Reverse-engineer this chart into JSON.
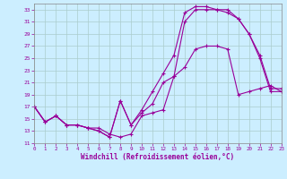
{
  "xlabel": "Windchill (Refroidissement éolien,°C)",
  "bg_color": "#cceeff",
  "line_color": "#990099",
  "xlim": [
    0,
    23
  ],
  "ylim": [
    11,
    34
  ],
  "xticks": [
    0,
    1,
    2,
    3,
    4,
    5,
    6,
    7,
    8,
    9,
    10,
    11,
    12,
    13,
    14,
    15,
    16,
    17,
    18,
    19,
    20,
    21,
    22,
    23
  ],
  "yticks": [
    11,
    13,
    15,
    17,
    19,
    21,
    23,
    25,
    27,
    29,
    31,
    33
  ],
  "line1_x": [
    0,
    1,
    2,
    3,
    4,
    5,
    6,
    7,
    8,
    9,
    10,
    11,
    12,
    13,
    14,
    15,
    16,
    17,
    18,
    19,
    20,
    21,
    22,
    23
  ],
  "line1_y": [
    17.0,
    14.5,
    15.5,
    14.0,
    14.0,
    13.5,
    13.5,
    12.5,
    12.0,
    12.5,
    15.5,
    16.0,
    16.5,
    22.0,
    23.5,
    26.5,
    27.0,
    27.0,
    26.5,
    19.0,
    19.5,
    20.0,
    20.5,
    19.5
  ],
  "line2_x": [
    0,
    1,
    2,
    3,
    4,
    5,
    6,
    7,
    8,
    9,
    10,
    11,
    12,
    13,
    14,
    15,
    16,
    17,
    18,
    19,
    20,
    21,
    22,
    23
  ],
  "line2_y": [
    17.0,
    14.5,
    15.5,
    14.0,
    14.0,
    13.5,
    13.0,
    12.0,
    18.0,
    14.0,
    16.5,
    19.5,
    22.5,
    25.5,
    32.5,
    33.5,
    33.5,
    33.0,
    33.0,
    31.5,
    29.0,
    25.5,
    20.0,
    20.0
  ],
  "line3_x": [
    0,
    1,
    2,
    3,
    4,
    5,
    6,
    7,
    8,
    9,
    10,
    11,
    12,
    13,
    14,
    15,
    16,
    17,
    18,
    19,
    20,
    21,
    22,
    23
  ],
  "line3_y": [
    17.0,
    14.5,
    15.5,
    14.0,
    14.0,
    13.5,
    13.0,
    12.0,
    18.0,
    14.0,
    16.0,
    17.5,
    21.0,
    22.0,
    31.0,
    33.0,
    33.0,
    33.0,
    32.5,
    31.5,
    29.0,
    25.0,
    19.5,
    19.5
  ],
  "grid_color": "#aacccc",
  "grid_minor_color": "#bbdddd"
}
